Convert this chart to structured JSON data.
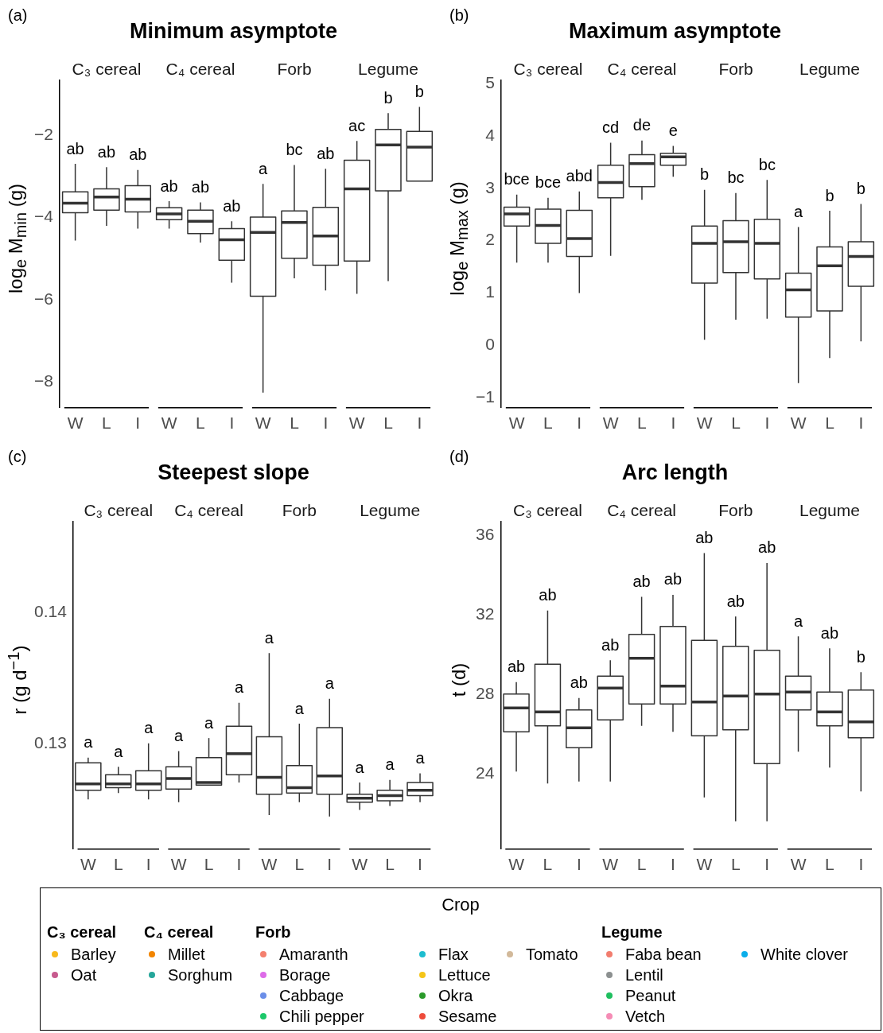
{
  "chart_data": [
    {
      "type": "box",
      "title": "Minimum asymptote",
      "ylabel": "log$_{e}$ M$_{min}$ (g)",
      "annotations": [
        "(a)",
        "C₃ cereal",
        "C₄ cereal",
        "Forb",
        "Legume"
      ],
      "categories": [
        "W",
        "L",
        "I",
        "W",
        "L",
        "I",
        "W",
        "L",
        "I",
        "W",
        "L",
        "I"
      ],
      "ylim": [
        -8.64,
        -0.64
      ],
      "yticks": [
        -8,
        -6,
        -4,
        -2
      ],
      "boxes": [
        {
          "low": -4.56,
          "q1": -3.88,
          "median": -3.65,
          "q3": -3.37,
          "high": -2.69
        },
        {
          "low": -4.2,
          "q1": -3.82,
          "median": -3.5,
          "q3": -3.3,
          "high": -2.77
        },
        {
          "low": -4.27,
          "q1": -3.86,
          "median": -3.55,
          "q3": -3.22,
          "high": -2.84
        },
        {
          "low": -4.27,
          "q1": -4.05,
          "median": -3.91,
          "q3": -3.76,
          "high": -3.6
        },
        {
          "low": -4.61,
          "q1": -4.39,
          "median": -4.09,
          "q3": -3.82,
          "high": -3.63
        },
        {
          "low": -5.59,
          "q1": -5.04,
          "median": -4.54,
          "q3": -4.27,
          "high": -4.09
        },
        {
          "low": -8.27,
          "q1": -5.92,
          "median": -4.36,
          "q3": -3.99,
          "high": -3.18
        },
        {
          "low": -5.48,
          "q1": -4.99,
          "median": -4.12,
          "q3": -3.84,
          "high": -2.72
        },
        {
          "low": -5.78,
          "q1": -5.16,
          "median": -4.45,
          "q3": -3.75,
          "high": -2.81
        },
        {
          "low": -5.86,
          "q1": -5.06,
          "median": -3.3,
          "q3": -2.6,
          "high": -2.13
        },
        {
          "low": -5.55,
          "q1": -3.35,
          "median": -2.23,
          "q3": -1.85,
          "high": -1.45
        },
        {
          "low": -3.11,
          "q1": -3.11,
          "median": -2.28,
          "q3": -1.9,
          "high": -1.3
        }
      ],
      "value_labels": [
        "ab",
        "ab",
        "ab",
        "ab",
        "ab",
        "ab",
        "a",
        "bc",
        "ab",
        "ac",
        "b",
        "b"
      ]
    },
    {
      "type": "box",
      "title": "Maximum asymptote",
      "ylabel": "log$_{e}$ M$_{max}$ (g)",
      "annotations": [
        "(b)",
        "C₃ cereal",
        "C₄ cereal",
        "Forb",
        "Legume"
      ],
      "categories": [
        "W",
        "L",
        "I",
        "W",
        "L",
        "I",
        "W",
        "L",
        "I",
        "W",
        "L",
        "I"
      ],
      "ylim": [
        -1.19,
        5.07
      ],
      "yticks": [
        -1,
        0,
        1,
        2,
        3,
        4,
        5
      ],
      "boxes": [
        {
          "low": 1.58,
          "q1": 2.28,
          "median": 2.51,
          "q3": 2.64,
          "high": 2.88
        },
        {
          "low": 1.58,
          "q1": 1.95,
          "median": 2.29,
          "q3": 2.6,
          "high": 2.82
        },
        {
          "low": 1.0,
          "q1": 1.7,
          "median": 2.04,
          "q3": 2.58,
          "high": 2.94
        },
        {
          "low": 1.71,
          "q1": 2.82,
          "median": 3.11,
          "q3": 3.44,
          "high": 3.87
        },
        {
          "low": 2.78,
          "q1": 3.03,
          "median": 3.47,
          "q3": 3.64,
          "high": 3.91
        },
        {
          "low": 3.22,
          "q1": 3.44,
          "median": 3.6,
          "q3": 3.67,
          "high": 3.81
        },
        {
          "low": 0.11,
          "q1": 1.19,
          "median": 1.95,
          "q3": 2.28,
          "high": 2.97
        },
        {
          "low": 0.49,
          "q1": 1.39,
          "median": 1.98,
          "q3": 2.38,
          "high": 2.91
        },
        {
          "low": 0.51,
          "q1": 1.27,
          "median": 1.95,
          "q3": 2.41,
          "high": 3.16
        },
        {
          "low": -0.72,
          "q1": 0.54,
          "median": 1.06,
          "q3": 1.38,
          "high": 2.26
        },
        {
          "low": -0.24,
          "q1": 0.66,
          "median": 1.52,
          "q3": 1.88,
          "high": 2.57
        },
        {
          "low": 0.08,
          "q1": 1.13,
          "median": 1.7,
          "q3": 1.98,
          "high": 2.7
        }
      ],
      "value_labels": [
        "bce",
        "bce",
        "abd",
        "cd",
        "de",
        "e",
        "b",
        "bc",
        "bc",
        "a",
        "b",
        "b"
      ]
    },
    {
      "type": "box",
      "title": "Steepest slope",
      "ylabel": "r (g d$^{−1}$)",
      "annotations": [
        "(c)",
        "C₃ cereal",
        "C₄ cereal",
        "Forb",
        "Legume"
      ],
      "categories": [
        "W",
        "L",
        "I",
        "W",
        "L",
        "I",
        "W",
        "L",
        "I",
        "W",
        "L",
        "I"
      ],
      "ylim": [
        0.1219,
        0.147
      ],
      "yticks": [
        0.13,
        0.14
      ],
      "boxes": [
        {
          "low": 0.1257,
          "q1": 0.1264,
          "median": 0.1269,
          "q3": 0.1285,
          "high": 0.1289
        },
        {
          "low": 0.1262,
          "q1": 0.1266,
          "median": 0.1269,
          "q3": 0.1276,
          "high": 0.1282
        },
        {
          "low": 0.1257,
          "q1": 0.1264,
          "median": 0.1269,
          "q3": 0.1279,
          "high": 0.13
        },
        {
          "low": 0.1255,
          "q1": 0.1265,
          "median": 0.1273,
          "q3": 0.1282,
          "high": 0.1294
        },
        {
          "low": 0.1268,
          "q1": 0.1268,
          "median": 0.127,
          "q3": 0.1289,
          "high": 0.1304
        },
        {
          "low": 0.127,
          "q1": 0.1276,
          "median": 0.1292,
          "q3": 0.1313,
          "high": 0.1331
        },
        {
          "low": 0.1245,
          "q1": 0.1261,
          "median": 0.1274,
          "q3": 0.1305,
          "high": 0.1369
        },
        {
          "low": 0.1255,
          "q1": 0.1262,
          "median": 0.1266,
          "q3": 0.1283,
          "high": 0.1315
        },
        {
          "low": 0.1244,
          "q1": 0.1261,
          "median": 0.1275,
          "q3": 0.1312,
          "high": 0.1334
        },
        {
          "low": 0.1249,
          "q1": 0.1255,
          "median": 0.1258,
          "q3": 0.1261,
          "high": 0.127
        },
        {
          "low": 0.1252,
          "q1": 0.1256,
          "median": 0.126,
          "q3": 0.1264,
          "high": 0.1272
        },
        {
          "low": 0.1255,
          "q1": 0.126,
          "median": 0.1264,
          "q3": 0.127,
          "high": 0.1277
        }
      ],
      "value_labels": [
        "a",
        "a",
        "a",
        "a",
        "a",
        "a",
        "a",
        "a",
        "a",
        "a",
        "a",
        "a"
      ]
    },
    {
      "type": "box",
      "title": "Arc length",
      "ylabel": "t (d)",
      "annotations": [
        "(d)",
        "C₃ cereal",
        "C₄ cereal",
        "Forb",
        "Legume"
      ],
      "categories": [
        "W",
        "L",
        "I",
        "W",
        "L",
        "I",
        "W",
        "L",
        "I",
        "W",
        "L",
        "I"
      ],
      "ylim": [
        20.2,
        36.7
      ],
      "yticks": [
        24,
        28,
        32,
        36
      ],
      "boxes": [
        {
          "low": 24.1,
          "q1": 26.1,
          "median": 27.3,
          "q3": 28.0,
          "high": 28.6
        },
        {
          "low": 23.5,
          "q1": 26.4,
          "median": 27.1,
          "q3": 29.5,
          "high": 32.2
        },
        {
          "low": 23.6,
          "q1": 25.3,
          "median": 26.3,
          "q3": 27.2,
          "high": 27.8
        },
        {
          "low": 23.6,
          "q1": 26.7,
          "median": 28.3,
          "q3": 28.9,
          "high": 29.7
        },
        {
          "low": 26.4,
          "q1": 27.5,
          "median": 29.8,
          "q3": 31.0,
          "high": 32.9
        },
        {
          "low": 26.1,
          "q1": 27.5,
          "median": 28.4,
          "q3": 31.4,
          "high": 33.0
        },
        {
          "low": 22.8,
          "q1": 25.9,
          "median": 27.6,
          "q3": 30.7,
          "high": 35.1
        },
        {
          "low": 21.6,
          "q1": 26.2,
          "median": 27.9,
          "q3": 30.4,
          "high": 31.9
        },
        {
          "low": 21.6,
          "q1": 24.5,
          "median": 28.0,
          "q3": 30.2,
          "high": 34.6
        },
        {
          "low": 25.1,
          "q1": 27.2,
          "median": 28.1,
          "q3": 28.9,
          "high": 30.9
        },
        {
          "low": 24.3,
          "q1": 26.4,
          "median": 27.1,
          "q3": 28.1,
          "high": 30.3
        },
        {
          "low": 23.1,
          "q1": 25.8,
          "median": 26.6,
          "q3": 28.2,
          "high": 29.1
        }
      ],
      "value_labels": [
        "ab",
        "ab",
        "ab",
        "ab",
        "ab",
        "ab",
        "ab",
        "ab",
        "ab",
        "a",
        "ab",
        "b"
      ]
    },
    {
      "type": "other",
      "title": "Crop",
      "annotations": [
        "C₃ cereal",
        "C₄ cereal",
        "Forb",
        "Legume"
      ],
      "categories": [
        "Barley",
        "Oat",
        "Millet",
        "Sorghum",
        "Amaranth",
        "Borage",
        "Cabbage",
        "Chili pepper",
        "Flax",
        "Lettuce",
        "Okra",
        "Sesame",
        "Tomato",
        "Faba bean",
        "Lentil",
        "Peanut",
        "Vetch",
        "White clover"
      ],
      "colors": [
        "#f8b91d",
        "#c75b8e",
        "#f28500",
        "#26a69a",
        "#f4806e",
        "#dd6be8",
        "#6b8ee8",
        "#1cc86a",
        "#1dbdcf",
        "#f5c518",
        "#2a9a2a",
        "#ee4b3a",
        "#d2b99a",
        "#f27d6e",
        "#8c9090",
        "#1fbf5f",
        "#f58cb5",
        "#0aaeea"
      ]
    }
  ]
}
